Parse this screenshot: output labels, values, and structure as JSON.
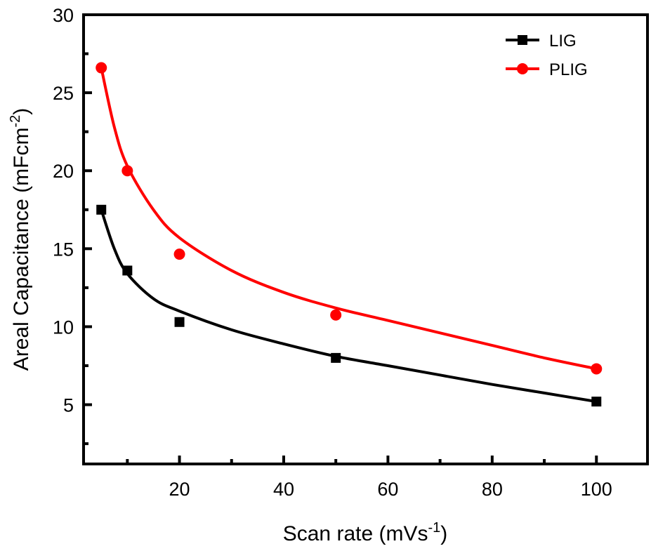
{
  "chart_data": {
    "type": "scatter",
    "title": "",
    "xlabel": "Scan rate (mVs",
    "xlabel_sup": "-1",
    "xlabel_end": ")",
    "ylabel": "Areal Capacitance (mFcm",
    "ylabel_sup": "-2",
    "ylabel_end": ")",
    "xlim": [
      1.6,
      109.8
    ],
    "ylim": [
      1.2,
      30
    ],
    "xticks": [
      20,
      40,
      60,
      80,
      100
    ],
    "xminor": [
      10,
      30,
      50,
      70,
      90
    ],
    "yticks": [
      5,
      10,
      15,
      20,
      25,
      30
    ],
    "yminor": [
      2.5,
      7.5,
      12.5,
      17.5,
      22.5,
      27.5
    ],
    "grid": false,
    "legend_position": "top-right",
    "series": [
      {
        "name": "LIG",
        "color": "#000000",
        "marker": "square",
        "x": [
          5,
          10,
          20,
          50,
          100
        ],
        "y": [
          17.5,
          13.6,
          10.3,
          8.0,
          5.2
        ],
        "fit_x": [
          5,
          7.5,
          10,
          15,
          20,
          30,
          40,
          50,
          60,
          70,
          80,
          90,
          100
        ],
        "fit_y": [
          17.5,
          15.0,
          13.4,
          11.8,
          11.0,
          9.8,
          8.9,
          8.1,
          7.5,
          6.9,
          6.3,
          5.75,
          5.2
        ]
      },
      {
        "name": "PLIG",
        "color": "#ff0000",
        "marker": "circle",
        "x": [
          5,
          10,
          20,
          50,
          100
        ],
        "y": [
          26.6,
          20.0,
          14.65,
          10.75,
          7.3
        ],
        "fit_x": [
          5,
          7.5,
          10,
          15,
          20,
          30,
          40,
          50,
          60,
          70,
          80,
          90,
          100
        ],
        "fit_y": [
          26.6,
          22.8,
          20.3,
          17.5,
          15.7,
          13.6,
          12.2,
          11.2,
          10.4,
          9.6,
          8.8,
          8.0,
          7.3
        ]
      }
    ]
  }
}
